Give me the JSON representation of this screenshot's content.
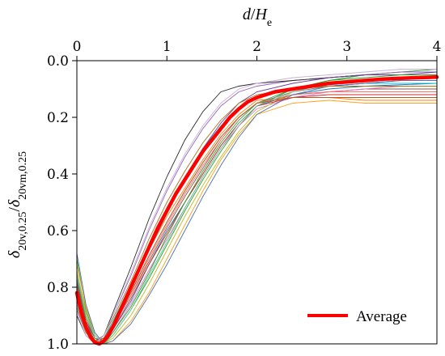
{
  "chart_data": {
    "type": "line",
    "xlabel": "d/He",
    "ylabel": "δ20v,0.25/δ20vm,0.25",
    "xlim": [
      0,
      4
    ],
    "ylim": [
      0,
      1
    ],
    "y_inverted": true,
    "x_axis_position": "top",
    "x_ticks": [
      "0",
      "1",
      "2",
      "3",
      "4"
    ],
    "y_ticks": [
      "0.0",
      "0.2",
      "0.4",
      "0.6",
      "0.8",
      "1.0"
    ],
    "legend": {
      "placement": "bottom-right",
      "entries": [
        "Average"
      ]
    },
    "average": {
      "name": "Average",
      "color": "#ff0000",
      "x": [
        0,
        0.05,
        0.1,
        0.15,
        0.2,
        0.25,
        0.3,
        0.35,
        0.4,
        0.5,
        0.6,
        0.7,
        0.8,
        0.9,
        1.0,
        1.1,
        1.2,
        1.3,
        1.4,
        1.5,
        1.6,
        1.7,
        1.8,
        1.9,
        2.0,
        2.2,
        2.4,
        2.6,
        2.8,
        3.0,
        3.2,
        3.4,
        3.6,
        3.8,
        4.0
      ],
      "y": [
        0.82,
        0.89,
        0.94,
        0.975,
        0.995,
        1.0,
        0.99,
        0.97,
        0.94,
        0.87,
        0.8,
        0.73,
        0.66,
        0.59,
        0.53,
        0.47,
        0.42,
        0.37,
        0.32,
        0.28,
        0.24,
        0.2,
        0.17,
        0.145,
        0.13,
        0.11,
        0.1,
        0.09,
        0.08,
        0.075,
        0.07,
        0.065,
        0.062,
        0.06,
        0.058
      ]
    },
    "individual_series": [
      {
        "color": "#1f77b4",
        "x": [
          0,
          0.1,
          0.2,
          0.3,
          0.4,
          0.6,
          0.8,
          1.0,
          1.2,
          1.4,
          1.6,
          1.8,
          2.0,
          2.4,
          2.8,
          3.2,
          3.6,
          4.0
        ],
        "y": [
          0.78,
          0.92,
          0.99,
          0.99,
          0.95,
          0.85,
          0.72,
          0.6,
          0.5,
          0.4,
          0.3,
          0.22,
          0.16,
          0.12,
          0.1,
          0.09,
          0.085,
          0.08
        ]
      },
      {
        "color": "#ff7f0e",
        "x": [
          0,
          0.1,
          0.2,
          0.3,
          0.4,
          0.6,
          0.8,
          1.0,
          1.2,
          1.4,
          1.6,
          1.8,
          2.0,
          2.4,
          2.8,
          3.2,
          3.6,
          4.0
        ],
        "y": [
          0.85,
          0.95,
          1.0,
          0.98,
          0.92,
          0.8,
          0.67,
          0.55,
          0.45,
          0.35,
          0.26,
          0.19,
          0.14,
          0.13,
          0.13,
          0.14,
          0.14,
          0.14
        ]
      },
      {
        "color": "#2ca02c",
        "x": [
          0,
          0.1,
          0.2,
          0.3,
          0.4,
          0.6,
          0.8,
          1.0,
          1.2,
          1.4,
          1.6,
          1.8,
          2.0,
          2.4,
          2.8,
          3.2,
          3.6,
          4.0
        ],
        "y": [
          0.7,
          0.88,
          0.97,
          1.0,
          0.97,
          0.88,
          0.77,
          0.65,
          0.53,
          0.42,
          0.32,
          0.23,
          0.16,
          0.1,
          0.07,
          0.05,
          0.04,
          0.03
        ]
      },
      {
        "color": "#9467bd",
        "x": [
          0,
          0.1,
          0.2,
          0.3,
          0.4,
          0.6,
          0.8,
          1.0,
          1.2,
          1.4,
          1.6,
          1.8,
          2.0,
          2.4,
          2.8,
          3.2,
          3.6,
          4.0
        ],
        "y": [
          0.88,
          0.96,
          0.99,
          0.97,
          0.9,
          0.76,
          0.6,
          0.46,
          0.34,
          0.24,
          0.16,
          0.11,
          0.09,
          0.07,
          0.06,
          0.05,
          0.04,
          0.04
        ]
      },
      {
        "color": "#8c564b",
        "x": [
          0,
          0.1,
          0.2,
          0.3,
          0.4,
          0.6,
          0.8,
          1.0,
          1.2,
          1.4,
          1.6,
          1.8,
          2.0,
          2.4,
          2.8,
          3.2,
          3.6,
          4.0
        ],
        "y": [
          0.8,
          0.93,
          0.99,
          0.98,
          0.93,
          0.83,
          0.71,
          0.59,
          0.48,
          0.38,
          0.28,
          0.2,
          0.15,
          0.12,
          0.11,
          0.1,
          0.1,
          0.1
        ]
      },
      {
        "color": "#e377c2",
        "x": [
          0,
          0.1,
          0.2,
          0.3,
          0.4,
          0.6,
          0.8,
          1.0,
          1.2,
          1.4,
          1.6,
          1.8,
          2.0,
          2.4,
          2.8,
          3.2,
          3.6,
          4.0
        ],
        "y": [
          0.76,
          0.9,
          0.98,
          1.0,
          0.96,
          0.86,
          0.74,
          0.63,
          0.52,
          0.41,
          0.31,
          0.23,
          0.17,
          0.13,
          0.11,
          0.1,
          0.09,
          0.09
        ]
      },
      {
        "color": "#7f7f7f",
        "x": [
          0,
          0.1,
          0.2,
          0.3,
          0.4,
          0.6,
          0.8,
          1.0,
          1.2,
          1.4,
          1.6,
          1.8,
          2.0,
          2.4,
          2.8,
          3.2,
          3.6,
          4.0
        ],
        "y": [
          0.83,
          0.94,
          0.99,
          0.99,
          0.94,
          0.82,
          0.69,
          0.57,
          0.46,
          0.36,
          0.27,
          0.2,
          0.15,
          0.11,
          0.09,
          0.08,
          0.07,
          0.07
        ]
      },
      {
        "color": "#bcbd22",
        "x": [
          0,
          0.1,
          0.2,
          0.3,
          0.4,
          0.6,
          0.8,
          1.0,
          1.2,
          1.4,
          1.6,
          1.8,
          2.0,
          2.4,
          2.8,
          3.2,
          3.6,
          4.0
        ],
        "y": [
          0.74,
          0.89,
          0.97,
          1.0,
          0.98,
          0.9,
          0.79,
          0.67,
          0.55,
          0.44,
          0.34,
          0.25,
          0.18,
          0.11,
          0.08,
          0.07,
          0.06,
          0.06
        ]
      },
      {
        "color": "#17becf",
        "x": [
          0,
          0.1,
          0.2,
          0.3,
          0.4,
          0.6,
          0.8,
          1.0,
          1.2,
          1.4,
          1.6,
          1.8,
          2.0,
          2.4,
          2.8,
          3.2,
          3.6,
          4.0
        ],
        "y": [
          0.86,
          0.95,
          0.99,
          0.98,
          0.92,
          0.79,
          0.65,
          0.52,
          0.41,
          0.31,
          0.23,
          0.17,
          0.13,
          0.1,
          0.09,
          0.08,
          0.08,
          0.08
        ]
      },
      {
        "color": "#2b2b2b",
        "x": [
          0,
          0.1,
          0.2,
          0.3,
          0.4,
          0.6,
          0.8,
          1.0,
          1.2,
          1.4,
          1.6,
          1.8,
          2.0,
          2.4,
          2.8,
          3.2,
          3.6,
          4.0
        ],
        "y": [
          0.9,
          0.97,
          1.0,
          0.97,
          0.89,
          0.73,
          0.56,
          0.41,
          0.28,
          0.18,
          0.11,
          0.09,
          0.08,
          0.07,
          0.06,
          0.05,
          0.05,
          0.05
        ]
      },
      {
        "color": "#d62728",
        "x": [
          0,
          0.1,
          0.2,
          0.3,
          0.4,
          0.6,
          0.8,
          1.0,
          1.2,
          1.4,
          1.6,
          1.8,
          2.0,
          2.4,
          2.8,
          3.2,
          3.6,
          4.0
        ],
        "y": [
          0.79,
          0.92,
          0.98,
          0.99,
          0.95,
          0.84,
          0.72,
          0.61,
          0.5,
          0.4,
          0.3,
          0.22,
          0.16,
          0.13,
          0.12,
          0.12,
          0.12,
          0.12
        ]
      },
      {
        "color": "#ff9f1c",
        "x": [
          0,
          0.1,
          0.2,
          0.3,
          0.4,
          0.6,
          0.8,
          1.0,
          1.2,
          1.4,
          1.6,
          1.8,
          2.0,
          2.4,
          2.8,
          3.2,
          3.6,
          4.0
        ],
        "y": [
          0.72,
          0.87,
          0.96,
          1.0,
          0.99,
          0.92,
          0.82,
          0.7,
          0.58,
          0.46,
          0.35,
          0.26,
          0.19,
          0.15,
          0.14,
          0.15,
          0.15,
          0.15
        ]
      },
      {
        "color": "#6a3d9a",
        "x": [
          0,
          0.1,
          0.2,
          0.3,
          0.4,
          0.6,
          0.8,
          1.0,
          1.2,
          1.4,
          1.6,
          1.8,
          2.0,
          2.4,
          2.8,
          3.2,
          3.6,
          4.0
        ],
        "y": [
          0.84,
          0.94,
          0.99,
          0.98,
          0.93,
          0.81,
          0.67,
          0.54,
          0.42,
          0.31,
          0.22,
          0.15,
          0.11,
          0.08,
          0.06,
          0.05,
          0.05,
          0.04
        ]
      },
      {
        "color": "#33a02c",
        "x": [
          0,
          0.1,
          0.2,
          0.3,
          0.4,
          0.6,
          0.8,
          1.0,
          1.2,
          1.4,
          1.6,
          1.8,
          2.0,
          2.4,
          2.8,
          3.2,
          3.6,
          4.0
        ],
        "y": [
          0.77,
          0.91,
          0.98,
          1.0,
          0.96,
          0.87,
          0.75,
          0.62,
          0.5,
          0.39,
          0.29,
          0.21,
          0.15,
          0.1,
          0.07,
          0.06,
          0.05,
          0.05
        ]
      },
      {
        "color": "#ff6f61",
        "x": [
          0,
          0.1,
          0.2,
          0.3,
          0.4,
          0.6,
          0.8,
          1.0,
          1.2,
          1.4,
          1.6,
          1.8,
          2.0,
          2.4,
          2.8,
          3.2,
          3.6,
          4.0
        ],
        "y": [
          0.81,
          0.93,
          0.99,
          0.99,
          0.94,
          0.83,
          0.7,
          0.58,
          0.47,
          0.37,
          0.28,
          0.2,
          0.15,
          0.12,
          0.11,
          0.11,
          0.11,
          0.11
        ]
      },
      {
        "color": "#4c72b0",
        "x": [
          0,
          0.1,
          0.2,
          0.3,
          0.4,
          0.6,
          0.8,
          1.0,
          1.2,
          1.4,
          1.6,
          1.8,
          2.0,
          2.4,
          2.8,
          3.2,
          3.6,
          4.0
        ],
        "y": [
          0.68,
          0.86,
          0.96,
          1.0,
          0.99,
          0.93,
          0.83,
          0.72,
          0.6,
          0.48,
          0.37,
          0.27,
          0.19,
          0.12,
          0.09,
          0.08,
          0.07,
          0.07
        ]
      },
      {
        "color": "#a6761d",
        "x": [
          0,
          0.1,
          0.2,
          0.3,
          0.4,
          0.6,
          0.8,
          1.0,
          1.2,
          1.4,
          1.6,
          1.8,
          2.0,
          2.4,
          2.8,
          3.2,
          3.6,
          4.0
        ],
        "y": [
          0.87,
          0.96,
          1.0,
          0.97,
          0.91,
          0.78,
          0.63,
          0.5,
          0.39,
          0.29,
          0.21,
          0.15,
          0.12,
          0.1,
          0.09,
          0.09,
          0.09,
          0.09
        ]
      },
      {
        "color": "#66c2a5",
        "x": [
          0,
          0.1,
          0.2,
          0.3,
          0.4,
          0.6,
          0.8,
          1.0,
          1.2,
          1.4,
          1.6,
          1.8,
          2.0,
          2.4,
          2.8,
          3.2,
          3.6,
          4.0
        ],
        "y": [
          0.75,
          0.9,
          0.97,
          1.0,
          0.97,
          0.88,
          0.76,
          0.64,
          0.52,
          0.41,
          0.31,
          0.22,
          0.16,
          0.11,
          0.08,
          0.07,
          0.06,
          0.06
        ]
      },
      {
        "color": "#b15928",
        "x": [
          0,
          0.1,
          0.2,
          0.3,
          0.4,
          0.6,
          0.8,
          1.0,
          1.2,
          1.4,
          1.6,
          1.8,
          2.0,
          2.4,
          2.8,
          3.2,
          3.6,
          4.0
        ],
        "y": [
          0.82,
          0.93,
          0.99,
          0.98,
          0.93,
          0.82,
          0.69,
          0.57,
          0.46,
          0.36,
          0.27,
          0.2,
          0.15,
          0.13,
          0.13,
          0.13,
          0.13,
          0.13
        ]
      },
      {
        "color": "#cab2d6",
        "x": [
          0,
          0.1,
          0.2,
          0.3,
          0.4,
          0.6,
          0.8,
          1.0,
          1.2,
          1.4,
          1.6,
          1.8,
          2.0,
          2.4,
          2.8,
          3.2,
          3.6,
          4.0
        ],
        "y": [
          0.89,
          0.97,
          1.0,
          0.97,
          0.9,
          0.75,
          0.59,
          0.45,
          0.33,
          0.23,
          0.15,
          0.1,
          0.08,
          0.06,
          0.05,
          0.04,
          0.03,
          0.03
        ]
      }
    ]
  }
}
